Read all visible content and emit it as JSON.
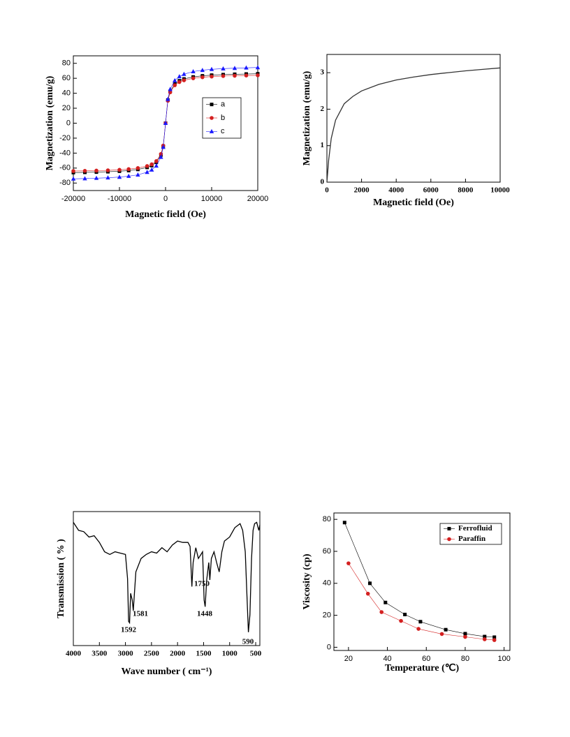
{
  "chart_data": [
    {
      "type": "line",
      "x_label": "Magnetic field (Oe)",
      "y_label": "Magnetization (emu/g)",
      "x": [
        -20000,
        -17500,
        -15000,
        -12500,
        -10000,
        -8000,
        -6000,
        -4000,
        -3000,
        -2000,
        -1000,
        -500,
        0,
        500,
        1000,
        2000,
        3000,
        4000,
        6000,
        8000,
        10000,
        12500,
        15000,
        17500,
        20000
      ],
      "series": [
        {
          "name": "a",
          "color": "#000000",
          "marker": "square",
          "values": [
            -66,
            -65.7,
            -65.4,
            -64.9,
            -64.2,
            -63.3,
            -61.8,
            -59.1,
            -56.7,
            -52.3,
            -42.5,
            -30.9,
            0,
            30.9,
            42.5,
            52.3,
            56.7,
            59.1,
            61.8,
            63.3,
            64.2,
            64.9,
            65.4,
            65.7,
            66
          ]
        },
        {
          "name": "b",
          "color": "#d42020",
          "marker": "circle",
          "values": [
            -64,
            -63.7,
            -63.4,
            -63,
            -62.3,
            -61.4,
            -60,
            -57.3,
            -55,
            -50.7,
            -41.2,
            -30,
            0,
            30,
            41.2,
            50.7,
            55,
            57.3,
            60,
            61.4,
            62.3,
            63,
            63.4,
            63.7,
            64
          ]
        },
        {
          "name": "c",
          "color": "#1a1aff",
          "marker": "triangle",
          "values": [
            -74.4,
            -74,
            -73.5,
            -72.9,
            -72,
            -70.8,
            -69,
            -65.5,
            -62.4,
            -57,
            -45.3,
            -32.1,
            0,
            32.1,
            45.3,
            57,
            62.4,
            65.5,
            69,
            70.8,
            72,
            72.9,
            73.5,
            74,
            74.4
          ]
        }
      ],
      "xlim": [
        -20000,
        20000
      ],
      "xticks": [
        -20000,
        -10000,
        0,
        10000,
        20000
      ],
      "ylim": [
        -90,
        90
      ],
      "yticks": [
        -80,
        -60,
        -40,
        -20,
        0,
        20,
        40,
        60,
        80
      ],
      "legend": "right"
    },
    {
      "type": "line",
      "x_label": "Magnetic field (Oe)",
      "y_label": "Magnetization (emu/g)",
      "x": [
        0,
        100,
        250,
        500,
        1000,
        1500,
        2000,
        3000,
        4000,
        5000,
        6000,
        7000,
        8000,
        9000,
        10000
      ],
      "series": [
        {
          "color": "#333333",
          "values": [
            0,
            0.6,
            1.2,
            1.7,
            2.15,
            2.35,
            2.5,
            2.68,
            2.8,
            2.88,
            2.95,
            3.0,
            3.05,
            3.09,
            3.13
          ]
        }
      ],
      "xlim": [
        0,
        10000
      ],
      "xticks": [
        0,
        2000,
        4000,
        6000,
        8000,
        10000
      ],
      "ylim": [
        0,
        3.5
      ],
      "yticks": [
        0,
        1,
        2,
        3
      ]
    },
    {
      "type": "line",
      "x_label": "Wave number ( cm⁻¹)",
      "y_label": "Transmission ( % )",
      "x": [
        4000,
        3900,
        3800,
        3700,
        3600,
        3500,
        3400,
        3300,
        3200,
        3100,
        3000,
        2960,
        2940,
        2920,
        2900,
        2870,
        2850,
        2800,
        2700,
        2600,
        2500,
        2400,
        2300,
        2200,
        2100,
        2000,
        1900,
        1800,
        1760,
        1725,
        1700,
        1650,
        1600,
        1550,
        1520,
        1490,
        1470,
        1440,
        1400,
        1380,
        1350,
        1300,
        1250,
        1200,
        1150,
        1100,
        1000,
        900,
        800,
        750,
        700,
        670,
        640,
        610,
        580,
        550,
        520,
        480,
        440,
        420
      ],
      "series": [
        {
          "color": "#000000",
          "values": [
            92,
            86,
            85,
            81,
            82,
            77,
            70,
            68,
            70,
            69,
            68,
            50,
            18,
            17,
            39,
            34,
            26,
            55,
            65,
            68,
            70,
            69,
            73,
            70,
            75,
            78,
            77,
            77,
            74,
            44,
            62,
            73,
            65,
            68,
            70,
            34,
            29,
            49,
            62,
            49,
            65,
            70,
            62,
            55,
            70,
            78,
            81,
            88,
            91,
            86,
            70,
            39,
            10,
            23,
            65,
            86,
            91,
            92,
            86,
            90
          ]
        }
      ],
      "xlim": [
        4000,
        420
      ],
      "xticks": [
        4000,
        3500,
        3000,
        2500,
        2000,
        1500,
        1000,
        500
      ],
      "ylim": [
        0,
        100
      ],
      "annotations": [
        "1592",
        "1581",
        "1750",
        "1448",
        "590"
      ]
    },
    {
      "type": "line",
      "x_label": "Temperature (℃)",
      "y_label": "Viscosity (cp)",
      "series": [
        {
          "name": "Ferrofluid",
          "color": "#000000",
          "marker": "square",
          "x": [
            18,
            31,
            39,
            49,
            57,
            70,
            80,
            90,
            95
          ],
          "values": [
            78,
            40,
            28,
            20.5,
            16,
            11,
            8.5,
            6.7,
            6.3
          ]
        },
        {
          "name": "Paraffin",
          "color": "#d42020",
          "marker": "circle",
          "x": [
            20,
            30,
            37,
            47,
            56,
            68,
            80,
            90,
            95
          ],
          "values": [
            52.5,
            33.5,
            22,
            16.5,
            11.5,
            8.3,
            6.5,
            5,
            4.5
          ]
        }
      ],
      "xlim": [
        12.5,
        103
      ],
      "xticks": [
        20,
        40,
        60,
        80,
        100
      ],
      "ylim": [
        -2,
        84
      ],
      "yticks": [
        0,
        20,
        40,
        60,
        80
      ],
      "legend": "upper right"
    }
  ]
}
